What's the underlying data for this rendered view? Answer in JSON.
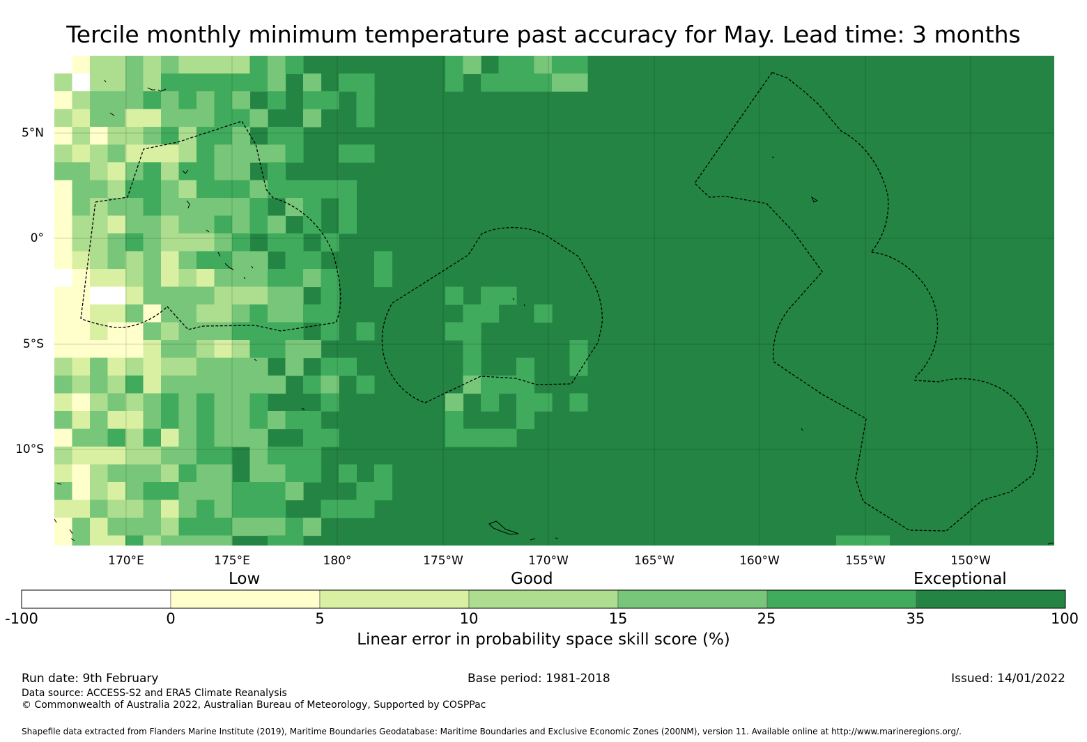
{
  "title": "Tercile monthly minimum temperature past accuracy for May. Lead time: 3 months",
  "map": {
    "lat_labels": [
      "5°N",
      "0°",
      "5°S",
      "10°S"
    ],
    "lon_labels": [
      "170°E",
      "175°E",
      "180°",
      "175°W",
      "170°W",
      "165°W",
      "160°W",
      "155°W",
      "150°W"
    ],
    "lon_range": [
      "166.6°E",
      "146.4°W"
    ],
    "lat_range": [
      "8.7°N",
      "14.6°S"
    ]
  },
  "colorbar": {
    "categories": [
      "Low",
      "Good",
      "Exceptional"
    ],
    "ticks": [
      "-100",
      "0",
      "5",
      "10",
      "15",
      "25",
      "35",
      "100"
    ],
    "colors": [
      "#ffffff",
      "#ffffcc",
      "#d9f0a3",
      "#addd8e",
      "#78c679",
      "#41ab5d",
      "#238443"
    ],
    "title": "Linear error in probability space skill score (%)"
  },
  "footer": {
    "run_date": "Run date: 9th February",
    "base_period": "Base period: 1981-2018",
    "issued": "Issued: 14/01/2022",
    "data_source": "Data source: ACCESS-S2 and ERA5 Climate Reanalysis",
    "copyright": "© Commonwealth of Australia 2022, Australian Bureau of Meteorology, Supported by COSPPac",
    "shapefile": "Shapefile data extracted from Flanders Marine Institute (2019), Maritime Boundaries Geodatabase: Maritime Boundaries and Exclusive Economic Zones (200NM), version 11. Available online at http://www.marineregions.org/."
  }
}
